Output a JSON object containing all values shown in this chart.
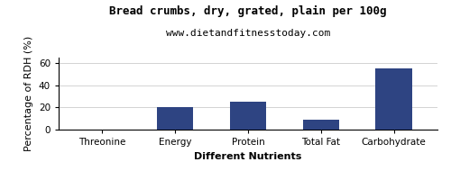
{
  "title": "Bread crumbs, dry, grated, plain per 100g",
  "subtitle": "www.dietandfitnesstoday.com",
  "categories": [
    "Threonine",
    "Energy",
    "Protein",
    "Total Fat",
    "Carbohydrate"
  ],
  "values": [
    0.3,
    20,
    25,
    9,
    55
  ],
  "bar_color": "#2e4482",
  "xlabel": "Different Nutrients",
  "ylabel": "Percentage of RDH (%)",
  "ylim": [
    0,
    65
  ],
  "yticks": [
    0,
    20,
    40,
    60
  ],
  "background_color": "#ffffff",
  "title_fontsize": 9,
  "subtitle_fontsize": 8,
  "axis_label_fontsize": 8,
  "tick_fontsize": 7.5
}
